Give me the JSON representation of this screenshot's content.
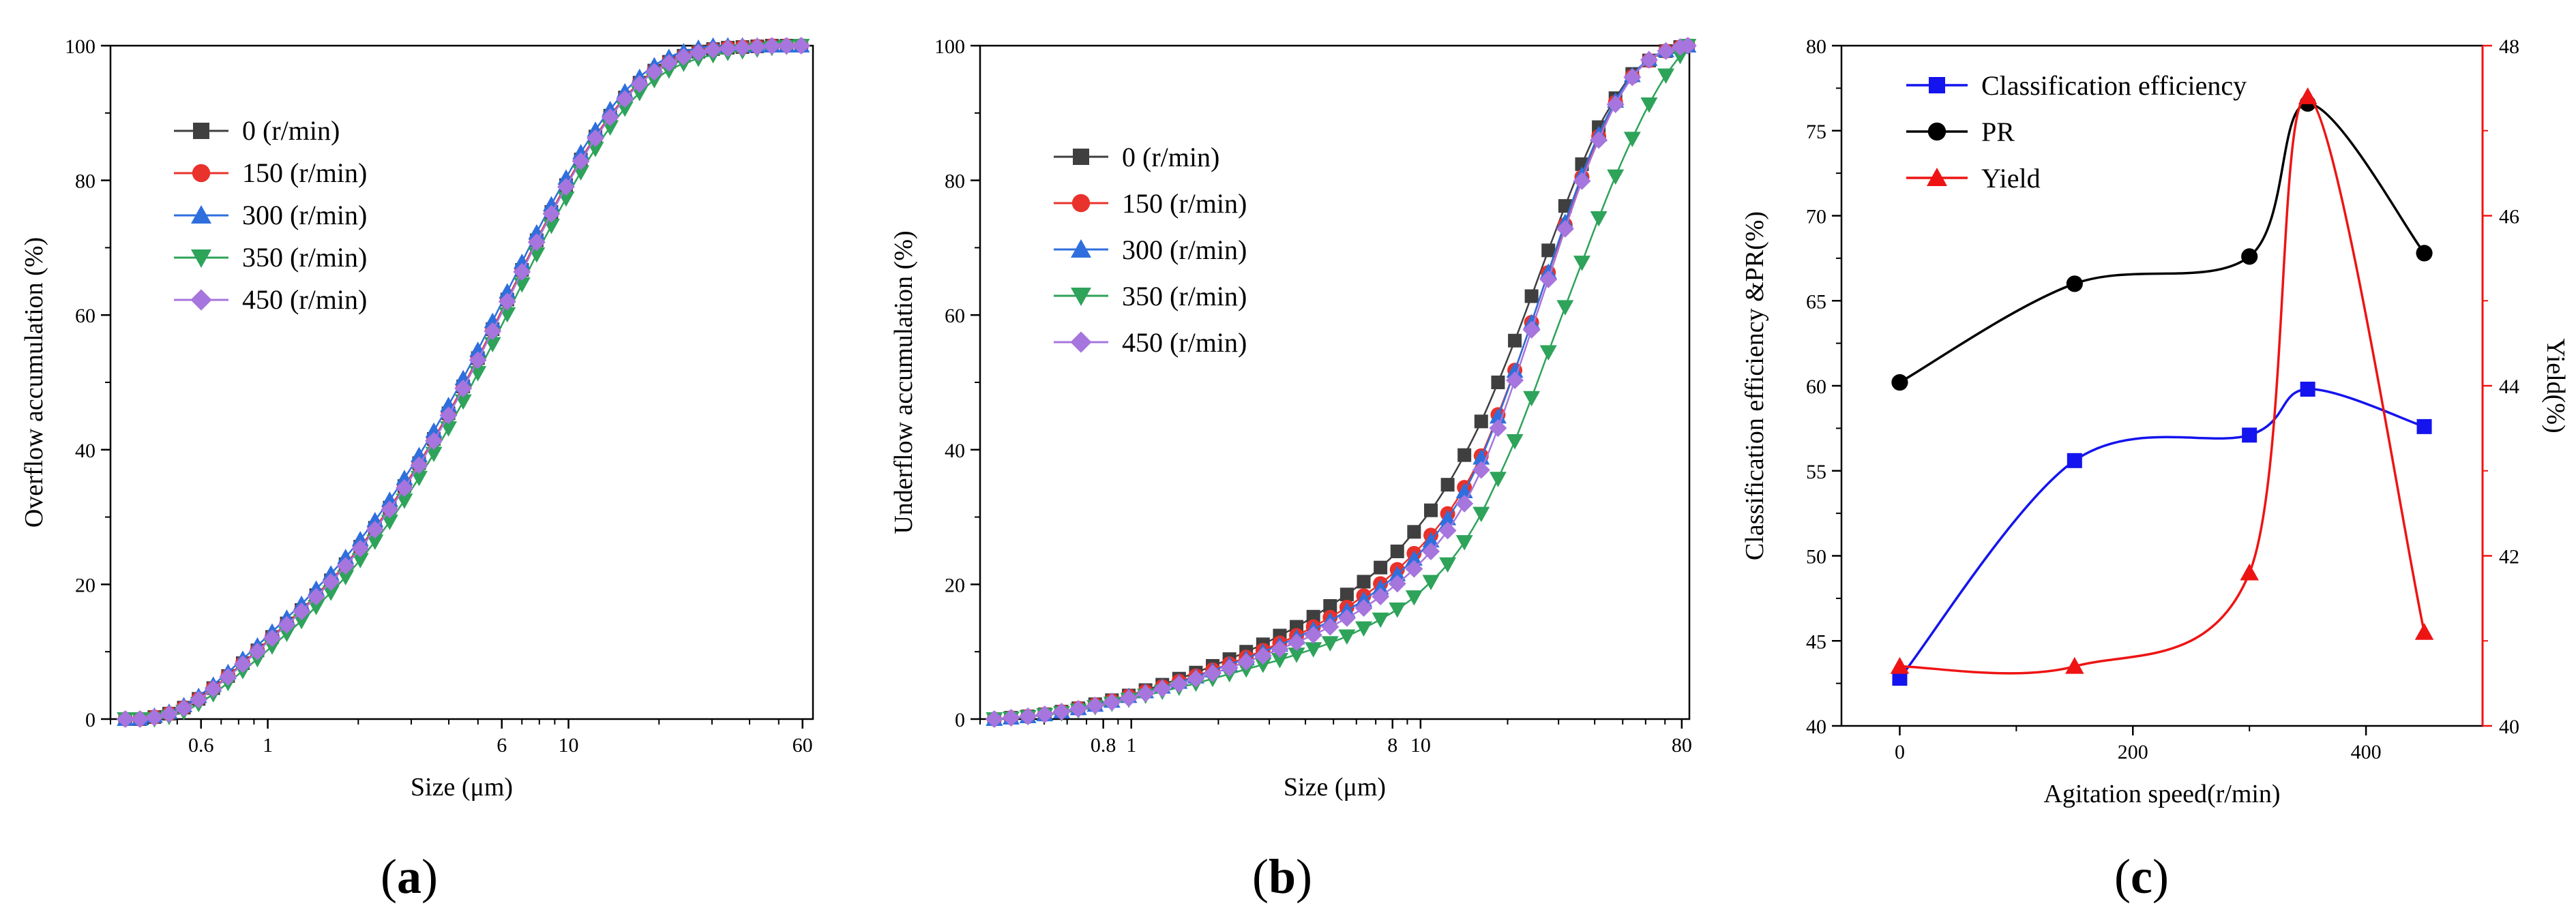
{
  "figure": {
    "panel_labels": [
      "(a)",
      "(b)",
      "(c)"
    ]
  },
  "chart_data": [
    {
      "id": "a",
      "type": "line",
      "xscale": "log",
      "xlabel": "Size (μm)",
      "ylabel": "Overflow accumulation (%)",
      "xlim": [
        0.3,
        65
      ],
      "ylim": [
        0,
        100
      ],
      "xticks": [
        {
          "v": 0.6,
          "label": "0.6"
        },
        {
          "v": 1,
          "label": "1"
        },
        {
          "v": 6,
          "label": "6"
        },
        {
          "v": 10,
          "label": "10"
        },
        {
          "v": 60,
          "label": "60"
        }
      ],
      "yticks": [
        0,
        20,
        40,
        60,
        80,
        100
      ],
      "legend_position": "top-left",
      "series": [
        {
          "name": "0 (r/min)",
          "color": "#3f3f3f",
          "marker": "square",
          "shift": 0.0
        },
        {
          "name": "150 (r/min)",
          "color": "#e8322b",
          "marker": "circle",
          "shift": 0.0
        },
        {
          "name": "300 (r/min)",
          "color": "#2f6fdd",
          "marker": "triangle-up",
          "shift": -0.12
        },
        {
          "name": "350 (r/min)",
          "color": "#2ea35a",
          "marker": "triangle-down",
          "shift": 0.22
        },
        {
          "name": "450 (r/min)",
          "color": "#a675dd",
          "marker": "diamond",
          "shift": 0.03
        }
      ],
      "x": [
        0.336,
        0.376,
        0.42,
        0.47,
        0.526,
        0.589,
        0.659,
        0.738,
        0.826,
        0.924,
        1.034,
        1.157,
        1.295,
        1.449,
        1.622,
        1.815,
        2.031,
        2.273,
        2.544,
        2.847,
        3.186,
        3.566,
        3.99,
        4.466,
        4.997,
        5.593,
        6.259,
        7.004,
        7.838,
        8.772,
        9.817,
        10.99,
        12.29,
        13.76,
        15.4,
        17.23,
        19.29,
        21.58,
        24.15,
        27.03,
        30.25,
        33.86,
        37.89,
        42.4,
        47.45,
        53.1,
        59.43
      ],
      "values": [
        0,
        0,
        0.3,
        0.8,
        1.7,
        3.0,
        4.6,
        6.4,
        8.3,
        10.2,
        12.2,
        14.2,
        16.2,
        18.4,
        20.6,
        23.0,
        25.6,
        28.4,
        31.4,
        34.6,
        38.0,
        41.6,
        45.4,
        49.4,
        53.6,
        57.9,
        62.3,
        66.7,
        71.1,
        75.3,
        79.3,
        83.1,
        86.5,
        89.6,
        92.3,
        94.5,
        96.3,
        97.6,
        98.5,
        99.1,
        99.5,
        99.7,
        99.8,
        99.9,
        100,
        100,
        100
      ]
    },
    {
      "id": "b",
      "type": "line",
      "xscale": "log",
      "xlabel": "Size (μm)",
      "ylabel": "Underflow accumulation (%)",
      "xlim": [
        0.3,
        85
      ],
      "ylim": [
        0,
        100
      ],
      "xticks": [
        {
          "v": 0.8,
          "label": "0.8"
        },
        {
          "v": 1,
          "label": "1"
        },
        {
          "v": 8,
          "label": "8"
        },
        {
          "v": 10,
          "label": "10"
        },
        {
          "v": 80,
          "label": "80"
        }
      ],
      "yticks": [
        0,
        20,
        40,
        60,
        80,
        100
      ],
      "legend_position": "top-left",
      "series": [
        {
          "name": "0 (r/min)",
          "color": "#3f3f3f",
          "marker": "square",
          "values": [
            0,
            0.2,
            0.4,
            0.7,
            1.1,
            1.6,
            2.2,
            2.8,
            3.5,
            4.3,
            5.1,
            6.0,
            6.9,
            7.9,
            8.9,
            10.0,
            11.1,
            12.4,
            13.7,
            15.2,
            16.8,
            18.5,
            20.4,
            22.5,
            24.9,
            27.8,
            31.0,
            34.8,
            39.2,
            44.2,
            50.0,
            56.2,
            62.8,
            69.6,
            76.2,
            82.4,
            87.9,
            92.2,
            95.8,
            97.8,
            99.2,
            99.8,
            100
          ]
        },
        {
          "name": "150 (r/min)",
          "color": "#e8322b",
          "marker": "circle",
          "values": [
            0,
            0.2,
            0.4,
            0.7,
            1.1,
            1.6,
            2.1,
            2.7,
            3.4,
            4.1,
            4.8,
            5.6,
            6.4,
            7.3,
            8.2,
            9.2,
            10.2,
            11.3,
            12.4,
            13.7,
            15.1,
            16.6,
            18.3,
            20.1,
            22.2,
            24.6,
            27.3,
            30.5,
            34.4,
            39.1,
            45.2,
            51.8,
            58.9,
            66.3,
            73.4,
            80.5,
            86.5,
            91.6,
            95.4,
            97.8,
            99.2,
            99.8,
            100
          ]
        },
        {
          "name": "300 (r/min)",
          "color": "#2f6fdd",
          "marker": "triangle-up",
          "values": [
            0,
            0.2,
            0.4,
            0.7,
            1.1,
            1.6,
            2.1,
            2.7,
            3.4,
            4.1,
            4.8,
            5.5,
            6.3,
            7.2,
            8.1,
            9.0,
            10.0,
            11.0,
            12.1,
            13.3,
            14.6,
            16.1,
            17.7,
            19.5,
            21.5,
            23.8,
            26.5,
            29.8,
            33.8,
            38.8,
            44.9,
            51.7,
            58.9,
            66.4,
            73.8,
            80.8,
            86.8,
            91.8,
            95.6,
            98.0,
            99.3,
            99.8,
            100
          ]
        },
        {
          "name": "350 (r/min)",
          "color": "#2ea35a",
          "marker": "triangle-down",
          "values": [
            0,
            0.1,
            0.3,
            0.6,
            0.9,
            1.3,
            1.8,
            2.3,
            2.9,
            3.5,
            4.1,
            4.7,
            5.3,
            6.0,
            6.7,
            7.4,
            8.1,
            8.8,
            9.6,
            10.4,
            11.3,
            12.3,
            13.5,
            14.8,
            16.3,
            18.1,
            20.4,
            23.0,
            26.3,
            30.5,
            35.7,
            41.3,
            47.7,
            54.5,
            61.2,
            67.8,
            74.4,
            80.6,
            86.2,
            91.3,
            95.6,
            98.5,
            100
          ]
        },
        {
          "name": "450 (r/min)",
          "color": "#a675dd",
          "marker": "diamond",
          "values": [
            0,
            0.2,
            0.4,
            0.7,
            1.1,
            1.5,
            2.0,
            2.5,
            3.1,
            3.8,
            4.5,
            5.2,
            6.0,
            6.8,
            7.6,
            8.5,
            9.4,
            10.4,
            11.4,
            12.5,
            13.7,
            15.0,
            16.5,
            18.2,
            20.1,
            22.3,
            24.9,
            28.0,
            32.0,
            37.0,
            43.2,
            50.3,
            57.8,
            65.3,
            72.8,
            79.9,
            86.0,
            91.3,
            95.3,
            97.9,
            99.2,
            99.8,
            100
          ]
        }
      ],
      "x": [
        0.336,
        0.384,
        0.439,
        0.502,
        0.574,
        0.656,
        0.75,
        0.857,
        0.98,
        1.12,
        1.28,
        1.463,
        1.672,
        1.911,
        2.184,
        2.496,
        2.853,
        3.261,
        3.727,
        4.26,
        4.869,
        5.565,
        6.361,
        7.27,
        8.31,
        9.498,
        10.86,
        12.41,
        14.18,
        16.21,
        18.53,
        21.18,
        24.2,
        27.66,
        31.62,
        36.14,
        41.31,
        47.21,
        53.96,
        61.68,
        70.5,
        79.0,
        84.0
      ]
    },
    {
      "id": "c",
      "type": "line",
      "xlabel": "Agitation speed(r/min)",
      "ylabel": "Classification efficiency &PR(%)",
      "y2label": "Yield(%)",
      "xlim": [
        -50,
        500
      ],
      "ylim": [
        40,
        80
      ],
      "y2lim": [
        40,
        48
      ],
      "xticks": [
        0,
        200,
        400
      ],
      "yticks": [
        40,
        45,
        50,
        55,
        60,
        65,
        70,
        75,
        80
      ],
      "y2ticks": [
        40,
        42,
        44,
        46,
        48
      ],
      "legend_position": "top-left",
      "x": [
        0,
        150,
        300,
        350,
        450
      ],
      "series": [
        {
          "name": "Classification efficiency",
          "color": "#1414ee",
          "marker": "square",
          "axis": "left",
          "values": [
            42.8,
            55.6,
            57.1,
            59.8,
            57.6
          ]
        },
        {
          "name": "PR",
          "color": "#000000",
          "marker": "circle",
          "axis": "left",
          "values": [
            60.2,
            66.0,
            67.6,
            76.6,
            67.8
          ]
        },
        {
          "name": "Yield",
          "color": "#ee1414",
          "marker": "triangle-up",
          "axis": "right",
          "values": [
            40.7,
            40.7,
            41.8,
            47.4,
            41.1
          ]
        }
      ]
    }
  ]
}
